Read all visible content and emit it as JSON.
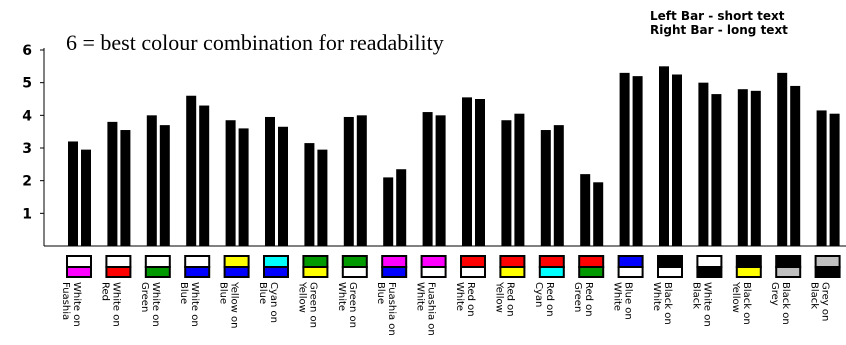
{
  "chart_data": {
    "type": "bar",
    "title": "6 = best colour combination for readability",
    "legend_note": [
      "Left Bar  -  short text",
      "Right Bar  -  long text"
    ],
    "series_note": "Left bar = short text; right bar = long text",
    "ylim": [
      0,
      6
    ],
    "yticks": [
      "1",
      "2",
      "3",
      "4",
      "5",
      "6"
    ],
    "categories": [
      {
        "text": "White on",
        "bg": "Fuashia",
        "top_color": "#ffffff",
        "bottom_color": "#ff00ff",
        "short": 3.2,
        "long": 2.95
      },
      {
        "text": "White on",
        "bg": "Red",
        "top_color": "#ffffff",
        "bottom_color": "#ff0000",
        "short": 3.8,
        "long": 3.55
      },
      {
        "text": "White on",
        "bg": "Green",
        "top_color": "#ffffff",
        "bottom_color": "#009900",
        "short": 4.0,
        "long": 3.7
      },
      {
        "text": "White on",
        "bg": "Blue",
        "top_color": "#ffffff",
        "bottom_color": "#0000ff",
        "short": 4.6,
        "long": 4.3
      },
      {
        "text": "Yellow on",
        "bg": "Blue",
        "top_color": "#ffff00",
        "bottom_color": "#0000ff",
        "short": 3.85,
        "long": 3.6
      },
      {
        "text": "Cyan on",
        "bg": "Blue",
        "top_color": "#00ffff",
        "bottom_color": "#0000ff",
        "short": 3.95,
        "long": 3.65
      },
      {
        "text": "Green on",
        "bg": "Yellow",
        "top_color": "#009900",
        "bottom_color": "#ffff00",
        "short": 3.15,
        "long": 2.95
      },
      {
        "text": "Green on",
        "bg": "White",
        "top_color": "#009900",
        "bottom_color": "#ffffff",
        "short": 3.95,
        "long": 4.0
      },
      {
        "text": "Fuashia on",
        "bg": "Blue",
        "top_color": "#ff00ff",
        "bottom_color": "#0000ff",
        "short": 2.1,
        "long": 2.35
      },
      {
        "text": "Fuashia on",
        "bg": "White",
        "top_color": "#ff00ff",
        "bottom_color": "#ffffff",
        "short": 4.1,
        "long": 4.0
      },
      {
        "text": "Red on",
        "bg": "White",
        "top_color": "#ff0000",
        "bottom_color": "#ffffff",
        "short": 4.55,
        "long": 4.5
      },
      {
        "text": "Red on",
        "bg": "Yellow",
        "top_color": "#ff0000",
        "bottom_color": "#ffff00",
        "short": 3.85,
        "long": 4.05
      },
      {
        "text": "Red on",
        "bg": "Cyan",
        "top_color": "#ff0000",
        "bottom_color": "#00ffff",
        "short": 3.55,
        "long": 3.7
      },
      {
        "text": "Red on",
        "bg": "Green",
        "top_color": "#ff0000",
        "bottom_color": "#009900",
        "short": 2.2,
        "long": 1.95
      },
      {
        "text": "Blue on",
        "bg": "White",
        "top_color": "#0000ff",
        "bottom_color": "#ffffff",
        "short": 5.3,
        "long": 5.2
      },
      {
        "text": "Black on",
        "bg": "White",
        "top_color": "#000000",
        "bottom_color": "#ffffff",
        "short": 5.5,
        "long": 5.25
      },
      {
        "text": "White on",
        "bg": "Black",
        "top_color": "#ffffff",
        "bottom_color": "#000000",
        "short": 5.0,
        "long": 4.65
      },
      {
        "text": "Black on",
        "bg": "Yellow",
        "top_color": "#000000",
        "bottom_color": "#ffff00",
        "short": 4.8,
        "long": 4.75
      },
      {
        "text": "Black on",
        "bg": "Grey",
        "top_color": "#000000",
        "bottom_color": "#c0c0c0",
        "short": 5.3,
        "long": 4.9
      },
      {
        "text": "Grey on",
        "bg": "Black",
        "top_color": "#c0c0c0",
        "bottom_color": "#000000",
        "short": 4.15,
        "long": 4.05
      }
    ]
  }
}
